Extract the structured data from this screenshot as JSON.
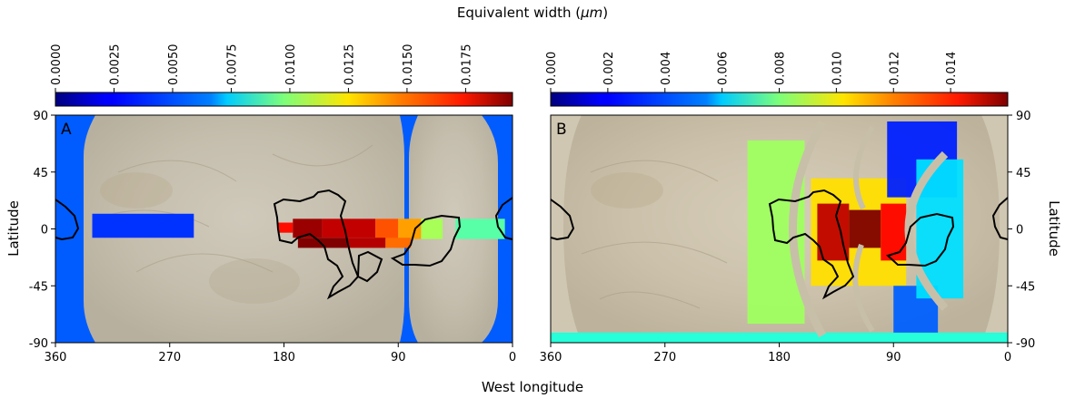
{
  "figure": {
    "colorbar_title": "Equivalent width (",
    "colorbar_title_unit": "μm",
    "colorbar_title_close": ")",
    "xlabel": "West longitude",
    "ylabel_left": "Latitude",
    "ylabel_right": "Latitude"
  },
  "chart_data": [
    {
      "type": "heatmap",
      "panel_label": "A",
      "xlabel": "West longitude",
      "ylabel": "Latitude",
      "xlim": [
        360,
        0
      ],
      "ylim": [
        -90,
        90
      ],
      "x_ticks": [
        "360",
        "270",
        "180",
        "90",
        "0"
      ],
      "y_ticks": [
        "90",
        "45",
        "0",
        "-45",
        "-90"
      ],
      "colormap": "jet",
      "colorbar": {
        "range": [
          0,
          0.0195
        ],
        "ticks": [
          "0.0000",
          "0.0025",
          "0.0050",
          "0.0075",
          "0.0100",
          "0.0125",
          "0.0150",
          "0.0175"
        ],
        "tick_values": [
          0,
          0.0025,
          0.005,
          0.0075,
          0.01,
          0.0125,
          0.015,
          0.0175
        ]
      },
      "cells": [
        {
          "lon": [
            360,
            0
          ],
          "lat": [
            -90,
            90
          ],
          "value": 0.0042
        },
        {
          "lon": [
            331,
            251
          ],
          "lat": [
            -7,
            12
          ],
          "value": 0.0034
        },
        {
          "lon": [
            185,
            173
          ],
          "lat": [
            -3,
            5
          ],
          "value": 0.0168
        },
        {
          "lon": [
            173,
            150
          ],
          "lat": [
            -7,
            8
          ],
          "value": 0.019
        },
        {
          "lon": [
            150,
            108
          ],
          "lat": [
            -7,
            8
          ],
          "value": 0.0182
        },
        {
          "lon": [
            108,
            90
          ],
          "lat": [
            -8,
            8
          ],
          "value": 0.0155
        },
        {
          "lon": [
            90,
            72
          ],
          "lat": [
            -8,
            8
          ],
          "value": 0.014
        },
        {
          "lon": [
            72,
            55
          ],
          "lat": [
            -8,
            8
          ],
          "value": 0.0105
        },
        {
          "lon": [
            169,
            130
          ],
          "lat": [
            -15,
            -7
          ],
          "value": 0.0195
        },
        {
          "lon": [
            130,
            100
          ],
          "lat": [
            -15,
            -7
          ],
          "value": 0.0185
        },
        {
          "lon": [
            100,
            80
          ],
          "lat": [
            -15,
            -7
          ],
          "value": 0.015
        },
        {
          "lon": [
            45,
            6
          ],
          "lat": [
            -8,
            8
          ],
          "value": 0.009
        }
      ]
    },
    {
      "type": "heatmap",
      "panel_label": "B",
      "xlabel": "West longitude",
      "ylabel": "Latitude",
      "xlim": [
        360,
        0
      ],
      "ylim": [
        -90,
        90
      ],
      "x_ticks": [
        "360",
        "270",
        "180",
        "90",
        "0"
      ],
      "y_ticks": [
        "90",
        "45",
        "0",
        "-45",
        "-90"
      ],
      "colormap": "jet",
      "colorbar": {
        "range": [
          0,
          0.016
        ],
        "ticks": [
          "0.000",
          "0.002",
          "0.004",
          "0.006",
          "0.008",
          "0.010",
          "0.012",
          "0.014"
        ],
        "tick_values": [
          0,
          0.002,
          0.004,
          0.006,
          0.008,
          0.01,
          0.012,
          0.014
        ]
      },
      "cells": [
        {
          "lon": [
            360,
            0
          ],
          "lat": [
            -90,
            -82
          ],
          "value": 0.0066
        },
        {
          "lon": [
            205,
            160
          ],
          "lat": [
            -75,
            70
          ],
          "value": 0.0085
        },
        {
          "lon": [
            155,
            80
          ],
          "lat": [
            -45,
            40
          ],
          "value": 0.0105
        },
        {
          "lon": [
            150,
            125
          ],
          "lat": [
            -25,
            20
          ],
          "value": 0.015
        },
        {
          "lon": [
            125,
            100
          ],
          "lat": [
            -15,
            15
          ],
          "value": 0.016
        },
        {
          "lon": [
            100,
            80
          ],
          "lat": [
            -25,
            20
          ],
          "value": 0.014
        },
        {
          "lon": [
            95,
            40
          ],
          "lat": [
            25,
            85
          ],
          "value": 0.0025
        },
        {
          "lon": [
            90,
            55
          ],
          "lat": [
            -82,
            -45
          ],
          "value": 0.0035
        },
        {
          "lon": [
            72,
            35
          ],
          "lat": [
            -55,
            55
          ],
          "value": 0.0055
        }
      ]
    }
  ]
}
